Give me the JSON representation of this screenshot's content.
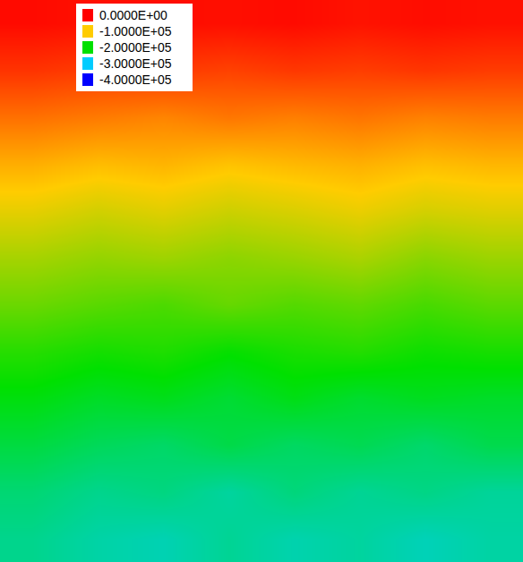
{
  "chart_data": {
    "type": "heatmap",
    "tick_labels": false,
    "color_range": [
      -400000,
      0
    ],
    "color_ticks": [
      {
        "value": 0,
        "label": "0.0000E+00"
      },
      {
        "value": -100000,
        "label": "-1.0000E+05"
      },
      {
        "value": -200000,
        "label": "-2.0000E+05"
      },
      {
        "value": -300000,
        "label": "-3.0000E+05"
      },
      {
        "value": -400000,
        "label": "-4.0000E+05"
      }
    ],
    "colors": [
      "#ff0000",
      "#ffcc00",
      "#00e000",
      "#00ccff",
      "#0000ff"
    ],
    "cells": [
      [
        -5000,
        -8000,
        -6000,
        -7000,
        -5000,
        -9000,
        -6000,
        -8000
      ],
      [
        -25000,
        -30000,
        -28000,
        -32000,
        -27000,
        -30000,
        -26000,
        -29000
      ],
      [
        -55000,
        -60000,
        -65000,
        -58000,
        -62000,
        -57000,
        -63000,
        -60000
      ],
      [
        -85000,
        -92000,
        -88000,
        -95000,
        -90000,
        -86000,
        -93000,
        -89000
      ],
      [
        -110000,
        -118000,
        -112000,
        -120000,
        -115000,
        -108000,
        -117000,
        -113000
      ],
      [
        -135000,
        -142000,
        -138000,
        -145000,
        -140000,
        -133000,
        -146000,
        -139000
      ],
      [
        -158000,
        -165000,
        -170000,
        -160000,
        -167000,
        -162000,
        -172000,
        -164000
      ],
      [
        -185000,
        -192000,
        -188000,
        -198000,
        -190000,
        -186000,
        -195000,
        -191000
      ],
      [
        -205000,
        -215000,
        -210000,
        -220000,
        -208000,
        -218000,
        -212000,
        -216000
      ],
      [
        -225000,
        -235000,
        -240000,
        -228000,
        -238000,
        -232000,
        -242000,
        -230000
      ],
      [
        -245000,
        -255000,
        -250000,
        -262000,
        -248000,
        -258000,
        -252000,
        -260000
      ],
      [
        -255000,
        -265000,
        -270000,
        -258000,
        -268000,
        -262000,
        -272000,
        -264000
      ]
    ]
  }
}
